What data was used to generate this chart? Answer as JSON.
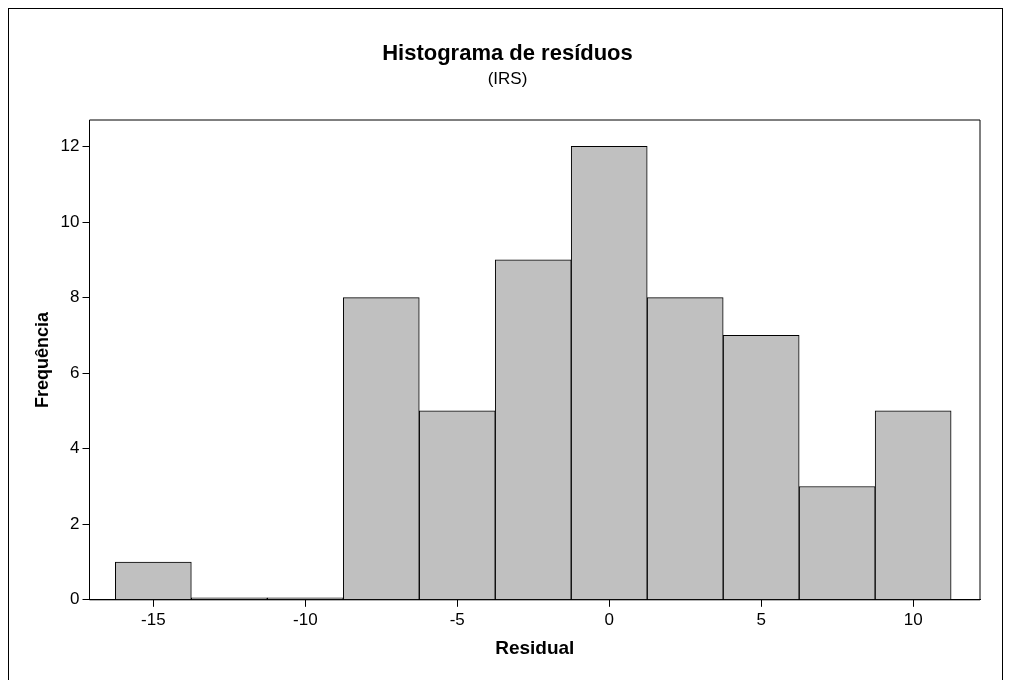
{
  "chart_data": {
    "type": "histogram",
    "title": "Histograma de resíduos",
    "subtitle": "(IRS)",
    "xlabel": "Residual",
    "ylabel": "Frequência",
    "bins": [
      -16.25,
      -13.75,
      -11.25,
      -8.75,
      -6.25,
      -3.75,
      -1.25,
      1.25,
      3.75,
      6.25,
      8.75,
      11.25
    ],
    "values": [
      1,
      0,
      0,
      8,
      5,
      9,
      12,
      8,
      7,
      3,
      5
    ],
    "color": "#c0c0c0",
    "xlim": [
      -17.1,
      12.2
    ],
    "xticks": [
      -15,
      -10,
      -5,
      0,
      5,
      10
    ],
    "ylim": [
      0,
      12.7
    ],
    "yticks": [
      0,
      2,
      4,
      6,
      8,
      10,
      12
    ],
    "grid": false,
    "legend": false
  }
}
